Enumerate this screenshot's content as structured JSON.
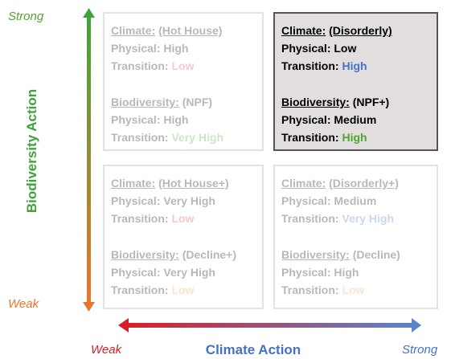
{
  "y_axis": {
    "title": "Biodiversity Action",
    "top": "Strong",
    "bottom": "Weak"
  },
  "x_axis": {
    "title": "Climate Action",
    "left": "Weak",
    "right": "Strong"
  },
  "quadrants": [
    {
      "active": false,
      "groups": [
        {
          "name": "Climate:",
          "scenario": "(Hot House)",
          "lines": [
            {
              "label": "Physical:",
              "value": "High"
            },
            {
              "label": "Transition:",
              "value": "Low",
              "color": "#e0403a"
            }
          ]
        },
        {
          "name": "Biodiversity:",
          "scenario": "(NPF)",
          "lines": [
            {
              "label": "Physical:",
              "value": "High"
            },
            {
              "label": "Transition:",
              "value": "Very High",
              "color": "#4ea72e"
            }
          ]
        }
      ]
    },
    {
      "active": true,
      "groups": [
        {
          "name": "Climate:",
          "scenario": "(Disorderly)",
          "lines": [
            {
              "label": "Physical:",
              "value": "Low"
            },
            {
              "label": "Transition:",
              "value": "High",
              "color": "#4472c4"
            }
          ]
        },
        {
          "name": "Biodiversity:",
          "scenario": "(NPF+)",
          "lines": [
            {
              "label": "Physical:",
              "value": "Medium"
            },
            {
              "label": "Transition:",
              "value": "High",
              "color": "#4ea72e"
            }
          ]
        }
      ]
    },
    {
      "active": false,
      "groups": [
        {
          "name": "Climate:",
          "scenario": "(Hot House+)",
          "lines": [
            {
              "label": "Physical:",
              "value": "Very High"
            },
            {
              "label": "Transition:",
              "value": "Low",
              "color": "#e0403a"
            }
          ]
        },
        {
          "name": "Biodiversity:",
          "scenario": "(Decline+)",
          "lines": [
            {
              "label": "Physical:",
              "value": "Very High"
            },
            {
              "label": "Transition:",
              "value": "Low",
              "color": "#f0a050"
            }
          ]
        }
      ]
    },
    {
      "active": false,
      "groups": [
        {
          "name": "Climate:",
          "scenario": "(Disorderly+)",
          "lines": [
            {
              "label": "Physical:",
              "value": "Medium"
            },
            {
              "label": "Transition:",
              "value": "Very High",
              "color": "#4472c4"
            }
          ]
        },
        {
          "name": "Biodiversity:",
          "scenario": "(Decline)",
          "lines": [
            {
              "label": "Physical:",
              "value": "High"
            },
            {
              "label": "Transition:",
              "value": "Low",
              "color": "#f0a050"
            }
          ]
        }
      ]
    }
  ]
}
